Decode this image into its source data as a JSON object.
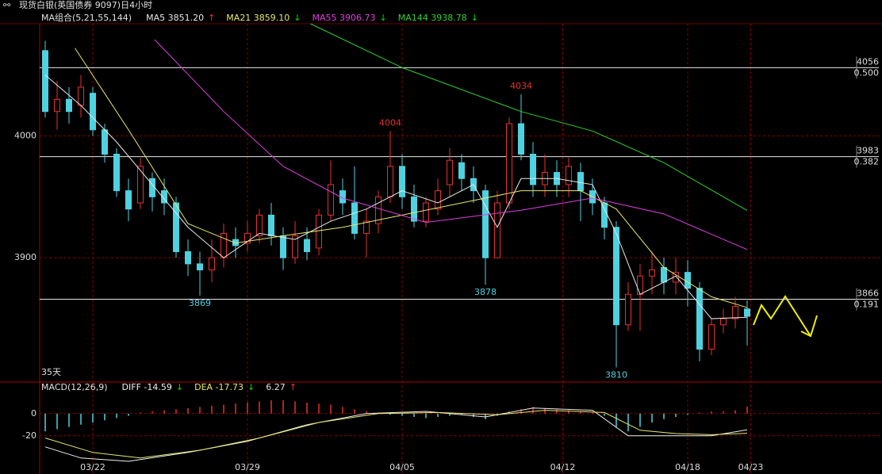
{
  "header": {
    "title": "现货白银(英国债券 9097)日4小时"
  },
  "chart_data": [
    {
      "type": "candlestick",
      "legend_title": "MA组合(5,21,55,144)",
      "note": "35天",
      "ylim": [
        3798,
        4092
      ],
      "yticks": [
        3900,
        4000
      ],
      "xticks": [
        {
          "value": 4,
          "label": "03/22"
        },
        {
          "value": 17,
          "label": "03/29"
        },
        {
          "value": 30,
          "label": "04/05"
        },
        {
          "value": 43.5,
          "label": "04/12"
        },
        {
          "value": 54,
          "label": "04/18"
        },
        {
          "value": 59.3,
          "label": "04/23"
        }
      ],
      "up_color": "#e83030",
      "down_color": "#4fd2e0",
      "open": [
        4070,
        4020,
        4030,
        4025,
        4035,
        4005,
        3985,
        3955,
        3945,
        3965,
        3955,
        3945,
        3905,
        3895,
        3890,
        3900,
        3915,
        3912,
        3918,
        3935,
        3918,
        3900,
        3915,
        3908,
        3935,
        3955,
        3945,
        3920,
        3928,
        3950,
        3975,
        3950,
        3930,
        3940,
        3960,
        3978,
        3965,
        3955,
        3900,
        3945,
        4010,
        3985,
        3960,
        3970,
        3960,
        3970,
        3955,
        3945,
        3925,
        3845,
        3870,
        3885,
        3892,
        3880,
        3888,
        3875,
        3825,
        3845,
        3850,
        3858
      ],
      "high": [
        4078,
        4045,
        4040,
        4050,
        4040,
        4010,
        3990,
        3965,
        3982,
        3970,
        3965,
        3950,
        3915,
        3905,
        3915,
        3928,
        3925,
        3930,
        3940,
        3945,
        3925,
        3930,
        3925,
        3940,
        3980,
        3965,
        3975,
        3940,
        3955,
        4004,
        3985,
        3960,
        3950,
        3965,
        3990,
        3985,
        3975,
        3960,
        3955,
        4015,
        4034,
        3995,
        3985,
        3980,
        3982,
        3978,
        3965,
        3950,
        3930,
        3880,
        3895,
        3905,
        3900,
        3900,
        3898,
        3880,
        3850,
        3858,
        3868,
        3865
      ],
      "low": [
        4015,
        4005,
        4010,
        4015,
        4000,
        3978,
        3950,
        3930,
        3940,
        3938,
        3935,
        3900,
        3885,
        3869,
        3880,
        3892,
        3900,
        3905,
        3912,
        3910,
        3890,
        3895,
        3898,
        3902,
        3930,
        3935,
        3915,
        3900,
        3920,
        3945,
        3940,
        3925,
        3925,
        3935,
        3950,
        3955,
        3945,
        3878,
        3900,
        3940,
        3980,
        3950,
        3950,
        3950,
        3950,
        3930,
        3935,
        3915,
        3810,
        3840,
        3840,
        3870,
        3870,
        3870,
        3860,
        3815,
        3820,
        3838,
        3842,
        3828
      ],
      "close": [
        4020,
        4030,
        4020,
        4040,
        4005,
        3985,
        3955,
        3940,
        3975,
        3950,
        3945,
        3905,
        3895,
        3890,
        3900,
        3920,
        3910,
        3920,
        3935,
        3918,
        3900,
        3918,
        3905,
        3935,
        3960,
        3945,
        3920,
        3930,
        3950,
        3975,
        3950,
        3930,
        3945,
        3955,
        3980,
        3965,
        3955,
        3900,
        3945,
        4010,
        3985,
        3960,
        3970,
        3960,
        3975,
        3955,
        3945,
        3925,
        3845,
        3870,
        3885,
        3890,
        3880,
        3888,
        3875,
        3825,
        3845,
        3850,
        3860,
        3852
      ],
      "annotations": [
        {
          "x": 29,
          "y": 4004,
          "side": "high"
        },
        {
          "x": 40,
          "y": 4034,
          "side": "high"
        },
        {
          "x": 13,
          "y": 3869,
          "side": "low"
        },
        {
          "x": 37,
          "y": 3878,
          "side": "low"
        },
        {
          "x": 48,
          "y": 3810,
          "side": "low"
        }
      ],
      "levels": [
        {
          "price": 4056,
          "ratio": "0.500"
        },
        {
          "price": 3983,
          "ratio": "0.382"
        },
        {
          "price": 3866,
          "ratio": "0.191"
        }
      ],
      "ma": [
        {
          "name": "MA5",
          "legend": "MA5 3851.20",
          "trend": "↑",
          "trend_color": "#ff3030",
          "color": "#e8e8e8",
          "x": [
            0,
            3,
            6,
            9,
            12,
            15,
            18,
            21,
            24,
            27,
            30,
            33,
            36,
            38,
            40,
            43,
            46,
            48,
            50,
            53,
            56,
            59
          ],
          "values": [
            4050,
            4025,
            3995,
            3960,
            3925,
            3900,
            3920,
            3915,
            3930,
            3940,
            3955,
            3945,
            3960,
            3925,
            3965,
            3965,
            3960,
            3920,
            3870,
            3885,
            3850,
            3851.2
          ]
        },
        {
          "name": "MA21",
          "legend": "MA21 3859.10",
          "trend": "↓",
          "trend_color": "#00e000",
          "color": "#e8e870",
          "x": [
            2.5,
            7,
            12,
            16,
            20,
            25,
            30,
            35,
            40,
            45,
            48,
            52,
            56,
            59
          ],
          "values": [
            4072,
            4005,
            3928,
            3912,
            3918,
            3925,
            3935,
            3945,
            3955,
            3955,
            3940,
            3892,
            3868,
            3859.1
          ]
        },
        {
          "name": "MA55",
          "legend": "MA55 3906.73",
          "trend": "↓",
          "trend_color": "#00e000",
          "color": "#e040e0",
          "x": [
            9.2,
            15,
            20,
            25,
            32,
            40,
            46,
            52,
            59
          ],
          "values": [
            4079,
            4020,
            3975,
            3949,
            3929,
            3939,
            3949,
            3936,
            3906.73
          ]
        },
        {
          "name": "MA144",
          "legend": "MA144 3938.78",
          "trend": "↓",
          "trend_color": "#00e000",
          "color": "#30d030",
          "x": [
            22.3,
            30,
            40,
            46,
            52,
            59
          ],
          "values": [
            4092,
            4056,
            4020,
            4004,
            3978,
            3938.78
          ]
        }
      ]
    },
    {
      "type": "macd",
      "legend_title": "MACD(12,26,9)",
      "ylim": [
        -53,
        27
      ],
      "yticks": [
        0,
        -20
      ],
      "pos_color": "#e83030",
      "neg_color": "#4fd2e0",
      "hist_legend": "6.27",
      "hist_trend": "↑",
      "histogram": [
        -16,
        -14,
        -12,
        -10,
        -8,
        -6,
        -4,
        -2,
        1,
        2,
        3,
        4,
        5,
        6,
        7,
        8,
        9,
        10,
        11,
        12,
        12,
        11,
        10,
        9,
        8,
        6,
        4,
        2,
        1,
        -1,
        -2,
        -3,
        -4,
        -3,
        -2,
        -1,
        -3,
        -5,
        -2,
        2,
        4,
        6,
        5,
        4,
        3,
        2,
        1,
        -2,
        -12,
        -16,
        -12,
        -8,
        -5,
        -3,
        -1,
        1,
        2,
        2,
        3,
        6.27
      ],
      "lines": [
        {
          "name": "DIFF",
          "legend": "DIFF -14.59",
          "trend": "↓",
          "trend_color": "#00e000",
          "color": "#f0f0f0",
          "x": [
            0,
            3,
            7,
            12,
            17,
            22,
            27,
            32,
            37,
            41,
            46,
            49,
            52,
            56,
            59
          ],
          "values": [
            -30,
            -40,
            -43,
            -35,
            -25,
            -10,
            0,
            2,
            -3,
            5,
            3,
            -20,
            -20,
            -20,
            -14.59
          ]
        },
        {
          "name": "DEA",
          "legend": "DEA -17.73",
          "trend": "↓",
          "trend_color": "#00e000",
          "color": "#e8e870",
          "x": [
            0,
            4,
            8,
            13,
            18,
            23,
            28,
            33,
            38,
            42,
            47,
            50,
            53,
            56,
            59
          ],
          "values": [
            -22,
            -35,
            -40,
            -33,
            -22,
            -8,
            0,
            1,
            -1,
            3,
            1,
            -15,
            -18,
            -19,
            -17.73
          ]
        }
      ]
    }
  ]
}
